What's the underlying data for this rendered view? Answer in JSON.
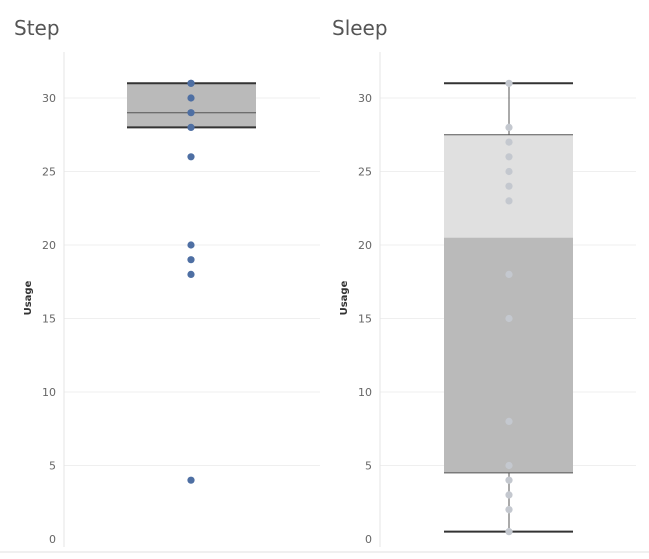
{
  "chart_data": [
    {
      "type": "box",
      "title": "Step",
      "ylabel": "Usage",
      "ylim": [
        0,
        32
      ],
      "yticks": [
        "0",
        "5",
        "10",
        "15",
        "20",
        "25",
        "30"
      ],
      "box": {
        "min": 28,
        "q1": 28,
        "median": 29,
        "q3": 31,
        "max": 31
      },
      "points": [
        31,
        31,
        30,
        29,
        28,
        26,
        20,
        19,
        18,
        4
      ],
      "point_color": "#4e6fa3",
      "box_color": "#bababa",
      "grid": true
    },
    {
      "type": "box",
      "title": "Sleep",
      "ylabel": "Usage",
      "ylim": [
        0,
        32
      ],
      "yticks": [
        "0",
        "5",
        "10",
        "15",
        "20",
        "25",
        "30"
      ],
      "box": {
        "min": 0.5,
        "q1": 4.5,
        "median": 20.5,
        "q3": 27.5,
        "max": 31
      },
      "points": [
        31,
        28,
        27,
        26,
        25,
        24,
        23,
        18,
        15,
        8,
        5,
        4,
        3,
        2,
        0.5
      ],
      "point_color": "#c4c8cf",
      "box_upper_color": "#e0e0e0",
      "box_lower_color": "#bababa",
      "grid": true
    }
  ]
}
